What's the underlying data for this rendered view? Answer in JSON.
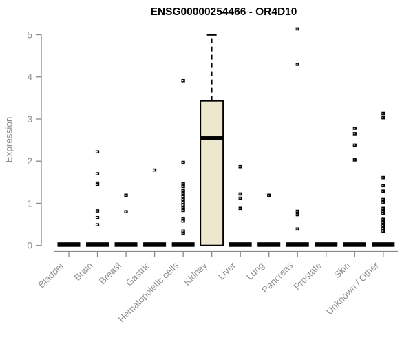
{
  "chart_data": {
    "type": "boxplot",
    "title": "ENSG00000254466 - OR4D10",
    "ylabel": "Expression",
    "xlabel": "",
    "ylim": [
      0,
      5
    ],
    "yticks": [
      0,
      1,
      2,
      3,
      4,
      5
    ],
    "grid": false,
    "legend": null,
    "categories": [
      "Bladder",
      "Brain",
      "Breast",
      "Gastric",
      "Hematopoietic cells",
      "Kidney",
      "Liver",
      "Lung",
      "Pancreas",
      "Prostate",
      "Skin",
      "Unknown / Other"
    ],
    "boxes": [
      {
        "category": "Bladder",
        "q1": 0,
        "median": 0,
        "q3": 0,
        "whisker_low": 0,
        "whisker_high": 0,
        "outliers": []
      },
      {
        "category": "Brain",
        "q1": 0,
        "median": 0,
        "q3": 0,
        "whisker_low": 0,
        "whisker_high": 0,
        "outliers": [
          2.22,
          1.7,
          1.48,
          1.45,
          0.82,
          0.66,
          0.49
        ]
      },
      {
        "category": "Breast",
        "q1": 0,
        "median": 0,
        "q3": 0,
        "whisker_low": 0,
        "whisker_high": 0,
        "outliers": [
          1.19,
          0.8
        ]
      },
      {
        "category": "Gastric",
        "q1": 0,
        "median": 0,
        "q3": 0,
        "whisker_low": 0,
        "whisker_high": 0,
        "outliers": [
          1.79
        ]
      },
      {
        "category": "Hematopoietic cells",
        "q1": 0,
        "median": 0,
        "q3": 0,
        "whisker_low": 0,
        "whisker_high": 0,
        "outliers": [
          3.91,
          1.97,
          1.46,
          1.4,
          1.3,
          1.24,
          1.16,
          1.09,
          1.02,
          0.96,
          0.89,
          0.83,
          0.63,
          0.58,
          0.34,
          0.29
        ]
      },
      {
        "category": "Kidney",
        "q1": 0,
        "median": 2.55,
        "q3": 3.43,
        "whisker_low": 0,
        "whisker_high": 5.0,
        "outliers": []
      },
      {
        "category": "Liver",
        "q1": 0,
        "median": 0,
        "q3": 0,
        "whisker_low": 0,
        "whisker_high": 0,
        "outliers": [
          1.87,
          1.22,
          1.12,
          0.88
        ]
      },
      {
        "category": "Lung",
        "q1": 0,
        "median": 0,
        "q3": 0,
        "whisker_low": 0,
        "whisker_high": 0,
        "outliers": [
          1.19
        ]
      },
      {
        "category": "Pancreas",
        "q1": 0,
        "median": 0,
        "q3": 0,
        "whisker_low": 0,
        "whisker_high": 0,
        "outliers": [
          5.14,
          4.3,
          0.81,
          0.73,
          0.39
        ]
      },
      {
        "category": "Prostate",
        "q1": 0,
        "median": 0,
        "q3": 0,
        "whisker_low": 0,
        "whisker_high": 0,
        "outliers": []
      },
      {
        "category": "Skin",
        "q1": 0,
        "median": 0,
        "q3": 0,
        "whisker_low": 0,
        "whisker_high": 0,
        "outliers": [
          2.78,
          2.65,
          2.38,
          2.03
        ]
      },
      {
        "category": "Unknown / Other",
        "q1": 0,
        "median": 0,
        "q3": 0,
        "whisker_low": 0,
        "whisker_high": 0,
        "outliers": [
          3.13,
          3.03,
          1.61,
          1.42,
          1.29,
          1.09,
          1.02,
          0.88,
          0.81,
          0.76,
          0.62,
          0.55,
          0.47,
          0.4,
          0.34
        ]
      }
    ],
    "colors": {
      "box_fill": "#EDE8CD",
      "box_border": "#000000",
      "median": "#000000",
      "whisker": "#000000",
      "outlier": "#000000",
      "axis_line": "#888888",
      "axis_text": "#8f8f8f",
      "title": "#000000",
      "background": "#ffffff"
    }
  }
}
